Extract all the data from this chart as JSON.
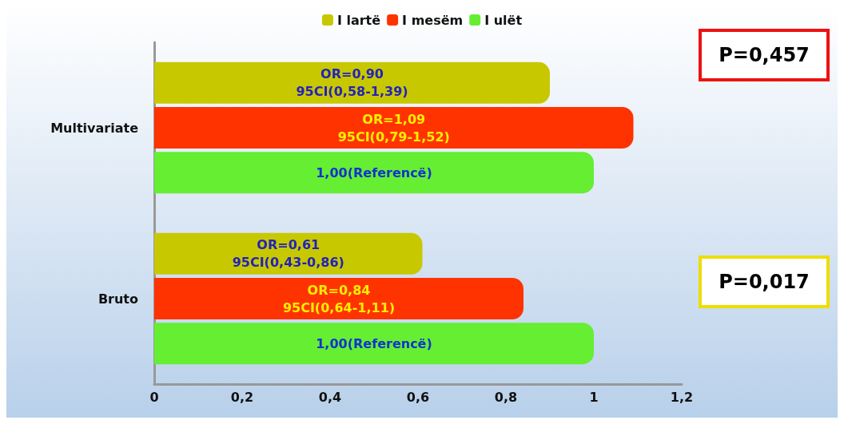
{
  "chart_data": {
    "type": "bar",
    "orientation": "horizontal",
    "categories": [
      "Multivariate",
      "Bruto"
    ],
    "series": [
      {
        "name": "I lartë",
        "color": "#c8c800",
        "values": [
          0.9,
          0.61
        ],
        "value_labels": [
          "OR=0,90\n95CI(0,58-1,39)",
          "OR=0,61\n95CI(0,43-0,86)"
        ]
      },
      {
        "name": "I mesëm",
        "color": "#ff3300",
        "values": [
          1.09,
          0.84
        ],
        "value_labels": [
          "OR=1,09\n95CI(0,79-1,52)",
          "OR=0,84\n95CI(0,64-1,11)"
        ]
      },
      {
        "name": "I ulët",
        "color": "#66ee33",
        "values": [
          1.0,
          1.0
        ],
        "value_labels": [
          "1,00(Referencë)",
          "1,00(Referencë)"
        ]
      }
    ],
    "xlim": [
      0,
      1.2
    ],
    "xticks": [
      0,
      {
        "value": 0.2,
        "label": "0,2"
      },
      {
        "value": 0.4,
        "label": "0,4"
      },
      {
        "value": 0.6,
        "label": "0,6"
      },
      {
        "value": 0.8,
        "label": "0,8"
      },
      1,
      {
        "value": 1.2,
        "label": "1,2"
      }
    ],
    "grid": false,
    "legend": "top",
    "annotations": [
      "P=0,457",
      "P=0,017"
    ]
  }
}
